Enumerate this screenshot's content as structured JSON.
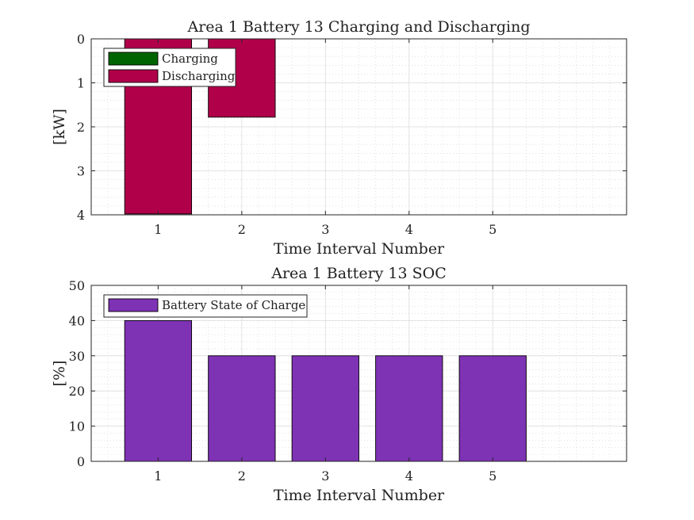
{
  "chart_data": [
    {
      "type": "bar",
      "title": "Area 1 Battery 13 Charging and Discharging",
      "xlabel": "Time Interval Number",
      "ylabel": "[kW]",
      "categories": [
        1,
        2,
        3,
        4,
        5
      ],
      "xlim": [
        0.2,
        6.6
      ],
      "ylim": [
        0,
        4
      ],
      "y_reversed": true,
      "yticks": [
        0,
        1,
        2,
        3,
        4
      ],
      "grid": true,
      "minor_grid": true,
      "legend_position": "top-left",
      "series": [
        {
          "name": "Charging",
          "color": "#006400",
          "values": [
            0,
            0,
            0,
            0,
            0
          ]
        },
        {
          "name": "Discharging",
          "color": "#B0004A",
          "values": [
            3.98,
            1.78,
            0,
            0,
            0
          ]
        }
      ]
    },
    {
      "type": "bar",
      "title": "Area 1 Battery 13 SOC",
      "xlabel": "Time Interval Number",
      "ylabel": "[%]",
      "categories": [
        1,
        2,
        3,
        4,
        5
      ],
      "xlim": [
        0.2,
        6.6
      ],
      "ylim": [
        0,
        50
      ],
      "y_reversed": false,
      "yticks": [
        0,
        10,
        20,
        30,
        40,
        50
      ],
      "grid": true,
      "minor_grid": true,
      "legend_position": "top-left",
      "series": [
        {
          "name": "Battery State of Charge",
          "color": "#7E32B4",
          "values": [
            40,
            30,
            30,
            30,
            30
          ]
        }
      ]
    }
  ]
}
